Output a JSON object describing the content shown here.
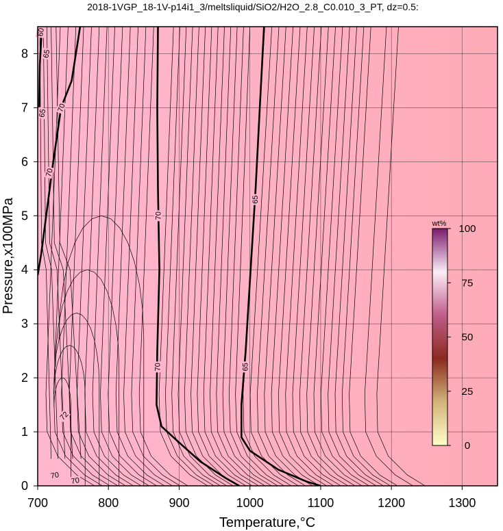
{
  "chart_data": {
    "type": "heatmap",
    "title": "2018-1VGP_18-1V-p14i1_3/meltsliquid/SiO2/H2O_2.8_C0.010_3_PT, dz=0.5:",
    "xlabel": "Temperature,°C",
    "ylabel": "Pressure,x100MPa",
    "xlim": [
      700,
      1350
    ],
    "ylim": [
      0,
      8.5
    ],
    "x_ticks": [
      700,
      800,
      900,
      1000,
      1100,
      1200,
      1300
    ],
    "y_ticks": [
      0,
      1,
      2,
      3,
      4,
      5,
      6,
      7,
      8
    ],
    "grid": true,
    "colorbar": {
      "label": "wt%",
      "ticks": [
        0,
        25,
        50,
        75,
        100
      ],
      "colors": [
        "#ffffc8",
        "#d2b47a",
        "#8c2a1e",
        "#c05d8a",
        "#fbeef6",
        "#7a1a6e"
      ]
    },
    "fill_colors": {
      "left": "#ffb7cf",
      "right": "#ffabb8"
    },
    "contour_interval": 0.5,
    "thick_contours": [
      {
        "level": 70,
        "points": [
          [
            870,
            8.5
          ],
          [
            869,
            7.0
          ],
          [
            870,
            5.5
          ],
          [
            872,
            4.0
          ],
          [
            869,
            2.5
          ],
          [
            868,
            1.5
          ],
          [
            875,
            1.1
          ],
          [
            900,
            0.8
          ],
          [
            930,
            0.45
          ],
          [
            965,
            0.15
          ],
          [
            985,
            0.0
          ]
        ]
      },
      {
        "level": 65,
        "points": [
          [
            1020,
            8.5
          ],
          [
            1014,
            7.0
          ],
          [
            1008,
            5.5
          ],
          [
            1001,
            4.0
          ],
          [
            994,
            2.5
          ],
          [
            988,
            1.5
          ],
          [
            988,
            0.9
          ],
          [
            1000,
            0.65
          ],
          [
            1040,
            0.3
          ],
          [
            1080,
            0.08
          ],
          [
            1100,
            0.0
          ]
        ]
      },
      {
        "level": 70,
        "points": [
          [
            760,
            8.5
          ],
          [
            748,
            7.5
          ],
          [
            733,
            7.0
          ],
          [
            722,
            6.0
          ],
          [
            712,
            5.0
          ],
          [
            705,
            4.3
          ],
          [
            700,
            3.9
          ]
        ]
      },
      {
        "level": 65,
        "points": [
          [
            706,
            8.5
          ],
          [
            703,
            7.8
          ],
          [
            702,
            7.0
          ]
        ]
      }
    ],
    "annotations": [
      {
        "text": "70",
        "x": 870,
        "y": 5.0,
        "rotate": -90
      },
      {
        "text": "70",
        "x": 869,
        "y": 2.2,
        "rotate": -90
      },
      {
        "text": "65",
        "x": 1007,
        "y": 5.3,
        "rotate": -90
      },
      {
        "text": "65",
        "x": 993,
        "y": 2.2,
        "rotate": -90
      },
      {
        "text": "70",
        "x": 733,
        "y": 7.0,
        "rotate": -70
      },
      {
        "text": "70",
        "x": 716,
        "y": 5.8,
        "rotate": -75
      },
      {
        "text": "65",
        "x": 712,
        "y": 8.0,
        "rotate": -80
      },
      {
        "text": "65",
        "x": 706,
        "y": 6.9,
        "rotate": -80
      },
      {
        "text": "60",
        "x": 704,
        "y": 8.4,
        "rotate": -80
      },
      {
        "text": "70",
        "x": 724,
        "y": 0.2,
        "rotate": -10
      },
      {
        "text": "70",
        "x": 753,
        "y": 0.1,
        "rotate": -10
      },
      {
        "text": "72",
        "x": 737,
        "y": 1.3,
        "rotate": -45
      }
    ]
  }
}
